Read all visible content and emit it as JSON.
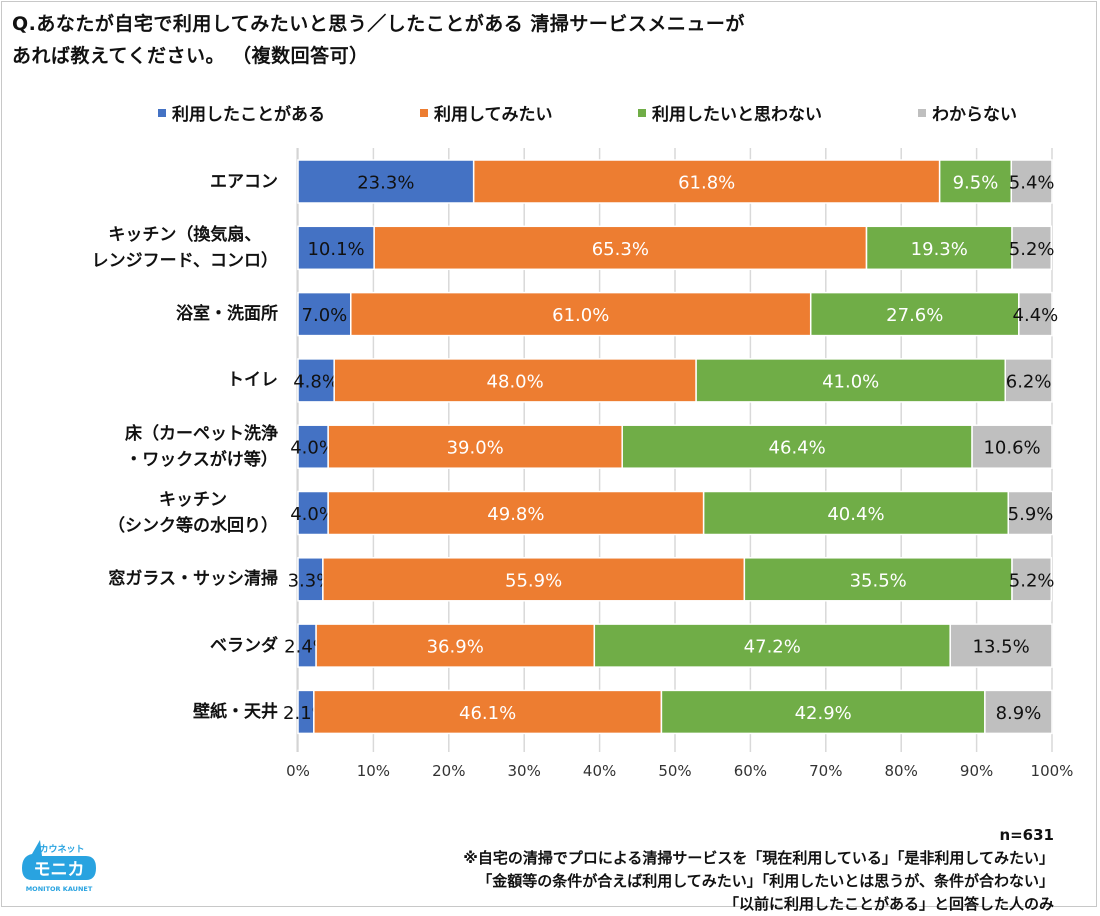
{
  "title_lines": [
    "Q.あなたが自宅で利用してみたいと思う／したことがある 清掃サービスメニューが",
    "あれば教えてください。 （複数回答可）"
  ],
  "chart_data": {
    "type": "bar",
    "orientation": "horizontal",
    "stacked": "percent",
    "title": "Q.あなたが自宅で利用してみたいと思う／したことがある 清掃サービスメニューがあれば教えてください。 （複数回答可）",
    "xlabel": "",
    "ylabel": "",
    "xlim": [
      0,
      100
    ],
    "xticks": [
      "0%",
      "10%",
      "20%",
      "30%",
      "40%",
      "50%",
      "60%",
      "70%",
      "80%",
      "90%",
      "100%"
    ],
    "grid": true,
    "legend_position": "top",
    "categories": [
      [
        "エアコン"
      ],
      [
        "キッチン（換気扇、",
        "レンジフード、コンロ）"
      ],
      [
        "浴室・洗面所"
      ],
      [
        "トイレ"
      ],
      [
        "床（カーペット洗浄",
        "・ワックスがけ等）"
      ],
      [
        "キッチン",
        "（シンク等の水回り）"
      ],
      [
        "窓ガラス・サッシ清掃"
      ],
      [
        "ベランダ"
      ],
      [
        "壁紙・天井"
      ]
    ],
    "series": [
      {
        "name": "利用したことがある",
        "color": "#4472C4",
        "label_color": "#111111",
        "values": [
          23.3,
          10.1,
          7.0,
          4.8,
          4.0,
          4.0,
          3.3,
          2.4,
          2.1
        ]
      },
      {
        "name": "利用してみたい",
        "color": "#ED7D31",
        "label_color": "#ffffff",
        "values": [
          61.8,
          65.3,
          61.0,
          48.0,
          39.0,
          49.8,
          55.9,
          36.9,
          46.1
        ]
      },
      {
        "name": "利用したいと思わない",
        "color": "#70AD47",
        "label_color": "#ffffff",
        "values": [
          9.5,
          19.3,
          27.6,
          41.0,
          46.4,
          40.4,
          35.5,
          47.2,
          42.9
        ]
      },
      {
        "name": "わからない",
        "color": "#BFBFBF",
        "label_color": "#111111",
        "values": [
          5.4,
          5.2,
          4.4,
          6.2,
          10.6,
          5.9,
          5.2,
          13.5,
          8.9
        ]
      }
    ]
  },
  "footer": {
    "sample_size": "n=631",
    "note_lines": [
      "※自宅の清掃でプロによる清掃サービスを「現在利用している」「是非利用してみたい」",
      "「金額等の条件が合えば利用してみたい」「利用したいとは思うが、条件が合わない」",
      "「以前に利用したことがある」と回答した人のみ"
    ]
  },
  "logo": {
    "top_text": "カウネット",
    "main_text": "モニカ",
    "sub_text": "MONITOR KAUNET",
    "color": "#29A3E0"
  }
}
